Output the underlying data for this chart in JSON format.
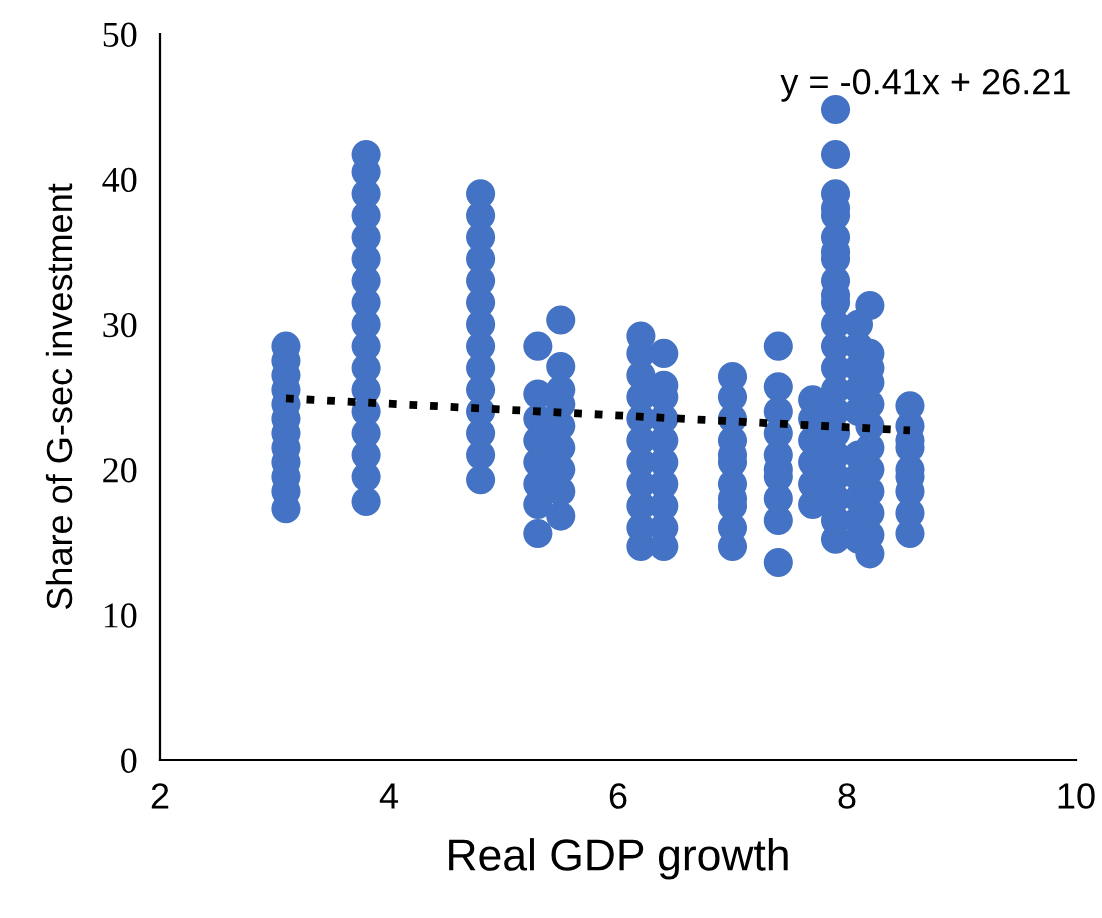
{
  "chart_data": {
    "type": "scatter",
    "xlabel": "Real GDP growth",
    "ylabel": "Share of G-sec investment",
    "xlim": [
      2,
      10
    ],
    "xticks": [
      2,
      4,
      6,
      8,
      10
    ],
    "ylim": [
      0,
      50
    ],
    "yticks": [
      0,
      10,
      20,
      30,
      40,
      50
    ],
    "grid": false,
    "legend": false,
    "marker": "circle",
    "annotations": [
      "y = -0.41x + 26.21"
    ],
    "series": [
      {
        "color": "#4472c4",
        "x": [
          3.1,
          3.1,
          3.1,
          3.1,
          3.1,
          3.1,
          3.1,
          3.1,
          3.1,
          3.1,
          3.1,
          3.1,
          3.8,
          3.8,
          3.8,
          3.8,
          3.8,
          3.8,
          3.8,
          3.8,
          3.8,
          3.8,
          3.8,
          3.8,
          3.8,
          3.8,
          3.8,
          3.8,
          3.8,
          4.8,
          4.8,
          4.8,
          4.8,
          4.8,
          4.8,
          4.8,
          4.8,
          4.8,
          4.8,
          4.8,
          4.8,
          4.8,
          4.8,
          5.3,
          5.3,
          5.3,
          5.3,
          5.3,
          5.3,
          5.3,
          5.3,
          5.5,
          5.5,
          5.5,
          5.5,
          5.5,
          5.5,
          5.5,
          5.5,
          5.5,
          6.2,
          6.2,
          6.2,
          6.2,
          6.2,
          6.2,
          6.2,
          6.2,
          6.2,
          6.2,
          6.2,
          6.4,
          6.4,
          6.4,
          6.4,
          6.4,
          6.4,
          6.4,
          6.4,
          6.4,
          6.4,
          7.0,
          7.0,
          7.0,
          7.0,
          7.0,
          7.0,
          7.0,
          7.0,
          7.0,
          7.0,
          7.0,
          7.4,
          7.4,
          7.4,
          7.4,
          7.4,
          7.4,
          7.4,
          7.4,
          7.4,
          7.4,
          7.7,
          7.7,
          7.7,
          7.7,
          7.7,
          7.7,
          7.9,
          7.9,
          7.9,
          7.9,
          7.9,
          7.9,
          7.9,
          7.9,
          7.9,
          7.9,
          7.9,
          7.9,
          7.9,
          7.9,
          7.9,
          7.9,
          7.9,
          7.9,
          7.9,
          7.9,
          7.9,
          7.9,
          8.1,
          8.1,
          8.1,
          8.1,
          8.1,
          8.1,
          8.1,
          8.1,
          8.1,
          8.1,
          8.2,
          8.2,
          8.2,
          8.2,
          8.2,
          8.2,
          8.2,
          8.2,
          8.2,
          8.2,
          8.2,
          8.2,
          8.55,
          8.55,
          8.55,
          8.55,
          8.55,
          8.55,
          8.55,
          8.55,
          8.55
        ],
        "values": [
          17.3,
          18.5,
          19.5,
          20.5,
          21.5,
          22.5,
          23.5,
          24.5,
          25.5,
          26.5,
          27.5,
          28.5,
          17.8,
          19.5,
          21,
          22.5,
          24,
          25.5,
          27,
          28.5,
          30,
          31.5,
          33,
          34.5,
          36,
          37.5,
          39,
          40.5,
          41.7,
          19.3,
          21,
          22.5,
          24,
          25.5,
          27,
          28.5,
          30,
          31.5,
          33,
          34.5,
          36,
          37.5,
          39,
          15.6,
          17.6,
          19,
          20.5,
          22,
          23.5,
          25.2,
          28.5,
          16.8,
          18.5,
          20,
          21.5,
          23,
          24.5,
          25.5,
          27.1,
          30.3,
          14.7,
          16,
          17.5,
          19,
          20.5,
          22,
          23.5,
          25,
          26.5,
          28,
          29.2,
          14.7,
          16,
          17.5,
          19,
          20.5,
          22,
          23.5,
          25,
          25.8,
          28,
          14.7,
          16,
          17.5,
          19,
          20.5,
          22,
          23.5,
          25,
          26.4,
          21,
          18,
          13.6,
          16.5,
          18,
          19.5,
          21,
          22.5,
          24,
          25.7,
          28.5,
          20,
          17.6,
          19,
          20.5,
          22,
          23.5,
          24.8,
          15.2,
          16.5,
          18,
          19.5,
          21,
          22.5,
          24,
          25.5,
          27,
          28.5,
          30,
          31.5,
          33,
          34.5,
          36,
          37.5,
          39,
          41.7,
          44.8,
          32,
          35,
          38,
          15.2,
          16.5,
          18,
          19.5,
          21,
          24,
          25.5,
          27,
          28.5,
          30,
          14.2,
          15.5,
          17,
          18.5,
          20,
          21.5,
          23,
          24.5,
          26,
          27,
          28,
          31.3,
          15.6,
          17,
          18.5,
          20,
          21.5,
          23,
          24.4,
          22,
          19.5
        ]
      },
      {
        "type": "line",
        "color": "#000000",
        "line_style": "dotted",
        "marker": "none",
        "x": [
          3.1,
          8.55
        ],
        "values": [
          24.9,
          22.7
        ]
      }
    ]
  }
}
